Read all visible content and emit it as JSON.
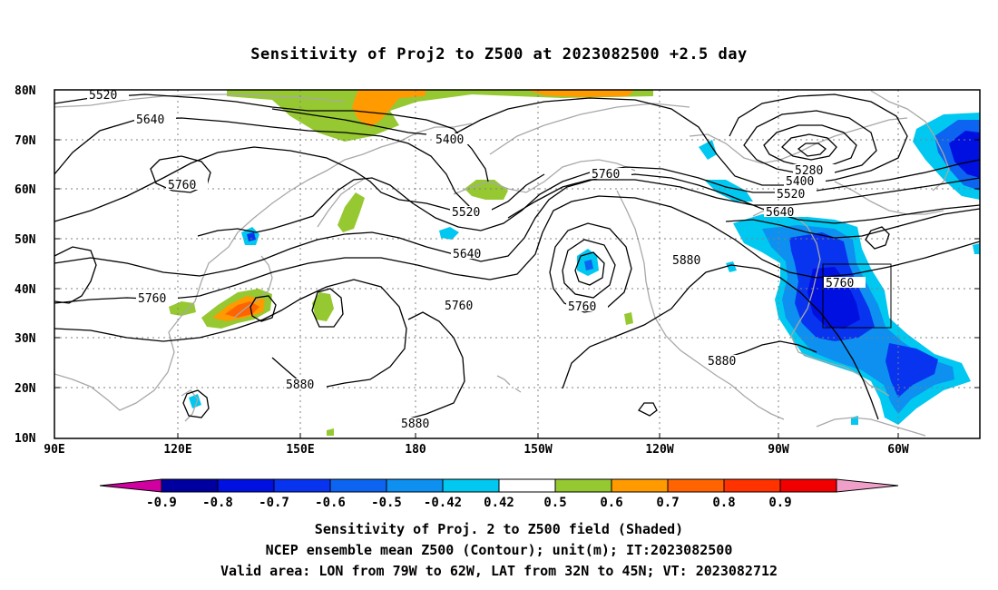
{
  "title": "Sensitivity of Proj2 to Z500 at 2023082500 +2.5 day",
  "map": {
    "lon_labels": [
      "90E",
      "120E",
      "150E",
      "180",
      "150W",
      "120W",
      "90W",
      "60W"
    ],
    "lat_labels": [
      "80N",
      "70N",
      "60N",
      "50N",
      "40N",
      "30N",
      "20N",
      "10N"
    ],
    "coastline_color": "#a8a8a8",
    "contour_color": "#000000",
    "grid": "dotted",
    "contour_labels": [
      {
        "label": "5520"
      },
      {
        "label": "5640"
      },
      {
        "label": "5760"
      },
      {
        "label": "5400"
      },
      {
        "label": "5520"
      },
      {
        "label": "5760"
      },
      {
        "label": "5280"
      },
      {
        "label": "5400"
      },
      {
        "label": "5520"
      },
      {
        "label": "5640"
      },
      {
        "label": "5640"
      },
      {
        "label": "5880"
      },
      {
        "label": "5760"
      },
      {
        "label": "5760"
      },
      {
        "label": "5760"
      },
      {
        "label": "5760"
      },
      {
        "label": "5880"
      },
      {
        "label": "5880"
      },
      {
        "label": "5880"
      }
    ],
    "valid_area": {
      "lon_min": "79W",
      "lon_max": "62W",
      "lat_min": "32N",
      "lat_max": "45N"
    }
  },
  "colorbar": {
    "labels": [
      "-0.9",
      "-0.8",
      "-0.7",
      "-0.6",
      "-0.5",
      "-0.42",
      "0.42",
      "0.5",
      "0.6",
      "0.7",
      "0.8",
      "0.9"
    ],
    "colors": [
      "#0000a0",
      "#0010e0",
      "#0834f0",
      "#0d64f0",
      "#0d90f0",
      "#00c8f0",
      "#ffffff",
      "#96c832",
      "#ff9a00",
      "#ff6400",
      "#ff3200",
      "#f00000"
    ],
    "low_end_color": "#d000a0",
    "high_end_color": "#f0a0c8"
  },
  "captions": [
    "Sensitivity of Proj. 2 to Z500 field (Shaded)",
    "NCEP ensemble mean Z500 (Contour); unit(m); IT:2023082500",
    "Valid area: LON from 79W to 62W, LAT from 32N to 45N; VT: 2023082712"
  ]
}
